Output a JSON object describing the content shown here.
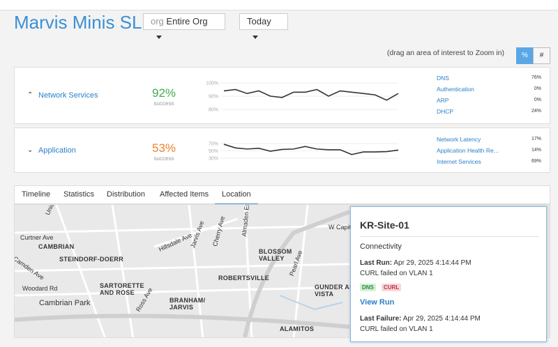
{
  "header": {
    "title": "Marvis Minis SLE",
    "org_label": "org",
    "org_value": "Entire Org",
    "time": "Today"
  },
  "hint": "(drag an area of interest to Zoom in)",
  "toggle": [
    "%",
    "#"
  ],
  "panels": [
    {
      "name": "Network Services",
      "metric": "92%",
      "metric_label": "success",
      "color": "#3fae49",
      "sparkline": {
        "type": "line",
        "ylim": [
          80,
          100
        ],
        "yticks": [
          {
            "value": 80,
            "label": "80%"
          },
          {
            "value": 90,
            "label": "90%"
          },
          {
            "value": 100,
            "label": "100%"
          }
        ],
        "values": [
          94,
          95,
          92,
          94,
          90,
          89,
          93,
          93,
          95,
          90,
          94,
          93,
          92,
          91,
          87,
          92
        ]
      },
      "breakdown": [
        {
          "name": "DNS",
          "value": "76%"
        },
        {
          "name": "Authentication",
          "value": "0%"
        },
        {
          "name": "ARP",
          "value": "0%"
        },
        {
          "name": "DHCP",
          "value": "24%"
        }
      ]
    },
    {
      "name": "Application",
      "metric": "53%",
      "metric_label": "success",
      "color": "#f07f2f",
      "sparkline": {
        "type": "line",
        "ylim": [
          30,
          70
        ],
        "yticks": [
          {
            "value": 30,
            "label": "30%"
          },
          {
            "value": 50,
            "label": "50%"
          },
          {
            "value": 70,
            "label": "70%"
          }
        ],
        "values": [
          68,
          58,
          55,
          57,
          49,
          54,
          55,
          62,
          55,
          53,
          53,
          40,
          47,
          47,
          48,
          52
        ]
      },
      "breakdown": [
        {
          "name": "Network Latency",
          "value": "17%"
        },
        {
          "name": "Application Health Re...",
          "value": "14%"
        },
        {
          "name": "Internet Services",
          "value": "69%"
        }
      ]
    }
  ],
  "tabs": [
    "Timeline",
    "Statistics",
    "Distribution",
    "Affected Items",
    "Location"
  ],
  "map": {
    "labels": [
      "Union Ave",
      "Curtner Ave",
      "CAMBRIAN",
      "Camden Ave",
      "STEINDORF-DOERR",
      "Woodard Rd",
      "SARTORETTE AND ROSE",
      "Cambrian Park",
      "Hillsdale Ave",
      "Jarvis Ave",
      "Cherry Ave",
      "Ross Ave",
      "BRANHAM/ JARVIS",
      "Almaden Expy",
      "BLOSSOM VALLEY",
      "ROBERTSVILLE",
      "Pearl Ave",
      "GUNDER AND VISTA",
      "ALAMITOS",
      "W Capit"
    ]
  },
  "popup": {
    "title": "KR-Site-01",
    "section": "Connectivity",
    "last_run_label": "Last Run:",
    "last_run": "Apr 29, 2025 4:14:44 PM",
    "last_run_detail": "CURL failed on VLAN 1",
    "tags": [
      "DNS",
      "CURL"
    ],
    "link": "View Run",
    "last_failure_label": "Last Failure:",
    "last_failure": "Apr 29, 2025 4:14:44 PM",
    "last_failure_detail": "CURL failed on VLAN 1"
  }
}
